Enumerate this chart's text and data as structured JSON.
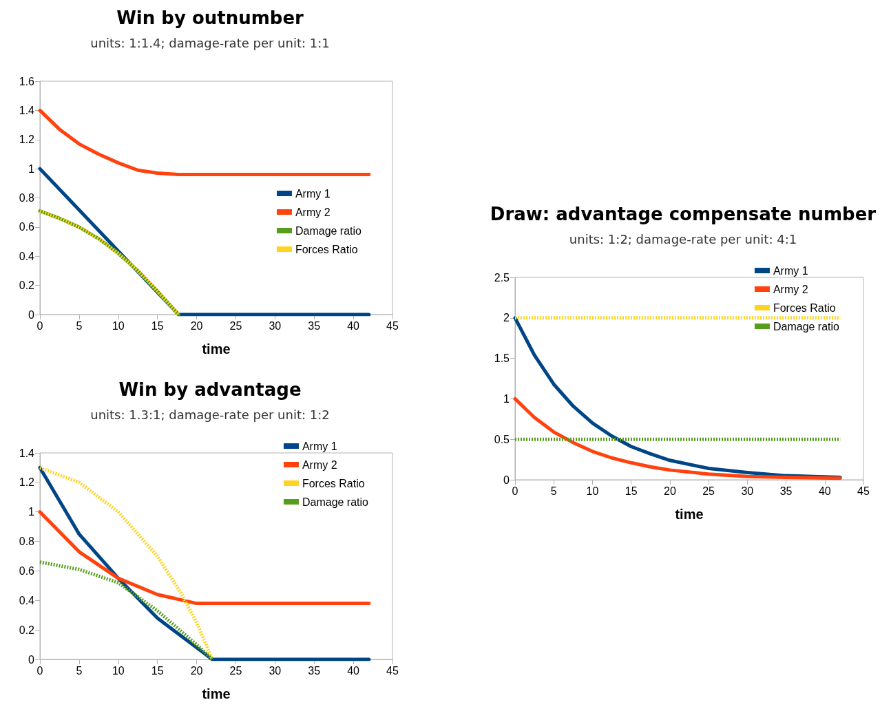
{
  "chart_data": [
    {
      "type": "line",
      "title": "Win by outnumber",
      "subtitle": "units: 1:1.4; damage-rate per unit: 1:1",
      "xlabel": "time",
      "xlim": [
        0,
        45
      ],
      "xticks": [
        0,
        5,
        10,
        15,
        20,
        25,
        30,
        35,
        40,
        45
      ],
      "ylim": [
        0,
        1.6
      ],
      "yticks": [
        0,
        0.2,
        0.4,
        0.6,
        0.8,
        1,
        1.2,
        1.4,
        1.6
      ],
      "grid": false,
      "legend": "right",
      "marker": "none",
      "series": [
        {
          "name": "Army 1",
          "color": "#004586",
          "line_style": "solid",
          "x": [
            0,
            17.7,
            42
          ],
          "values": [
            1,
            0,
            0
          ]
        },
        {
          "name": "Army 2",
          "color": "#ff420e",
          "line_style": "solid",
          "x": [
            0,
            2.5,
            5,
            7.5,
            10,
            12.5,
            15,
            17.7,
            42
          ],
          "values": [
            1.4,
            1.27,
            1.17,
            1.1,
            1.04,
            0.99,
            0.97,
            0.96,
            0.96
          ]
        },
        {
          "name": "Damage ratio",
          "color": "#579d1c",
          "line_style": "solid",
          "x": [
            0,
            2.5,
            5,
            7.5,
            10,
            12.5,
            15,
            17.7
          ],
          "values": [
            0.71,
            0.66,
            0.6,
            0.52,
            0.42,
            0.3,
            0.16,
            0
          ]
        },
        {
          "name": "Forces Ratio",
          "color": "#ffd320",
          "line_style": "dotted",
          "x": [
            0,
            2.5,
            5,
            7.5,
            10,
            12.5,
            15,
            17.7
          ],
          "values": [
            0.71,
            0.66,
            0.6,
            0.52,
            0.42,
            0.3,
            0.16,
            0
          ]
        }
      ]
    },
    {
      "type": "line",
      "title": "Draw: advantage compensate number",
      "subtitle": "units: 1:2; damage-rate per unit: 4:1",
      "xlabel": "time",
      "xlim": [
        0,
        45
      ],
      "xticks": [
        0,
        5,
        10,
        15,
        20,
        25,
        30,
        35,
        40,
        45
      ],
      "ylim": [
        0,
        2.5
      ],
      "yticks": [
        0,
        0.5,
        1,
        1.5,
        2,
        2.5
      ],
      "grid": false,
      "legend": "top right",
      "marker": "none",
      "series": [
        {
          "name": "Army 1",
          "color": "#004586",
          "line_style": "solid",
          "x": [
            0,
            2.5,
            5,
            7.5,
            10,
            12.5,
            15,
            17.5,
            20,
            25,
            30,
            35,
            42
          ],
          "values": [
            2,
            1.54,
            1.18,
            0.91,
            0.7,
            0.54,
            0.41,
            0.32,
            0.24,
            0.14,
            0.09,
            0.05,
            0.03
          ]
        },
        {
          "name": "Army 2",
          "color": "#ff420e",
          "line_style": "solid",
          "x": [
            0,
            2.5,
            5,
            7.5,
            10,
            12.5,
            15,
            17.5,
            20,
            25,
            30,
            35,
            42
          ],
          "values": [
            1,
            0.77,
            0.59,
            0.46,
            0.35,
            0.27,
            0.21,
            0.16,
            0.12,
            0.07,
            0.04,
            0.03,
            0.02
          ]
        },
        {
          "name": "Forces Ratio",
          "color": "#ffd320",
          "line_style": "dotted",
          "x": [
            0,
            42
          ],
          "values": [
            2,
            2
          ]
        },
        {
          "name": "Damage ratio",
          "color": "#579d1c",
          "line_style": "dotted",
          "x": [
            0,
            42
          ],
          "values": [
            0.5,
            0.5
          ]
        }
      ]
    },
    {
      "type": "line",
      "title": "Win by advantage",
      "subtitle": "units: 1.3:1; damage-rate per unit: 1:2",
      "xlabel": "time",
      "xlim": [
        0,
        45
      ],
      "xticks": [
        0,
        5,
        10,
        15,
        20,
        25,
        30,
        35,
        40,
        45
      ],
      "ylim": [
        0,
        1.4
      ],
      "yticks": [
        0,
        0.2,
        0.4,
        0.6,
        0.8,
        1,
        1.2,
        1.4
      ],
      "grid": false,
      "legend": "top right",
      "marker": "none",
      "series": [
        {
          "name": "Army 1",
          "color": "#004586",
          "line_style": "solid",
          "x": [
            0,
            5,
            10,
            15,
            20,
            22,
            42
          ],
          "values": [
            1.3,
            0.85,
            0.55,
            0.28,
            0.08,
            0,
            0
          ]
        },
        {
          "name": "Army 2",
          "color": "#ff420e",
          "line_style": "solid",
          "x": [
            0,
            5,
            10,
            15,
            20,
            22,
            42
          ],
          "values": [
            1,
            0.73,
            0.55,
            0.44,
            0.38,
            0.38,
            0.38
          ]
        },
        {
          "name": "Forces Ratio",
          "color": "#ffd320",
          "line_style": "dotted",
          "x": [
            0,
            5,
            10,
            15,
            18,
            20,
            22
          ],
          "values": [
            1.3,
            1.2,
            1,
            0.7,
            0.45,
            0.25,
            0
          ]
        },
        {
          "name": "Damage ratio",
          "color": "#579d1c",
          "line_style": "dotted",
          "x": [
            0,
            5,
            10,
            15,
            20,
            22
          ],
          "values": [
            0.66,
            0.61,
            0.52,
            0.33,
            0.1,
            0
          ]
        }
      ]
    }
  ]
}
